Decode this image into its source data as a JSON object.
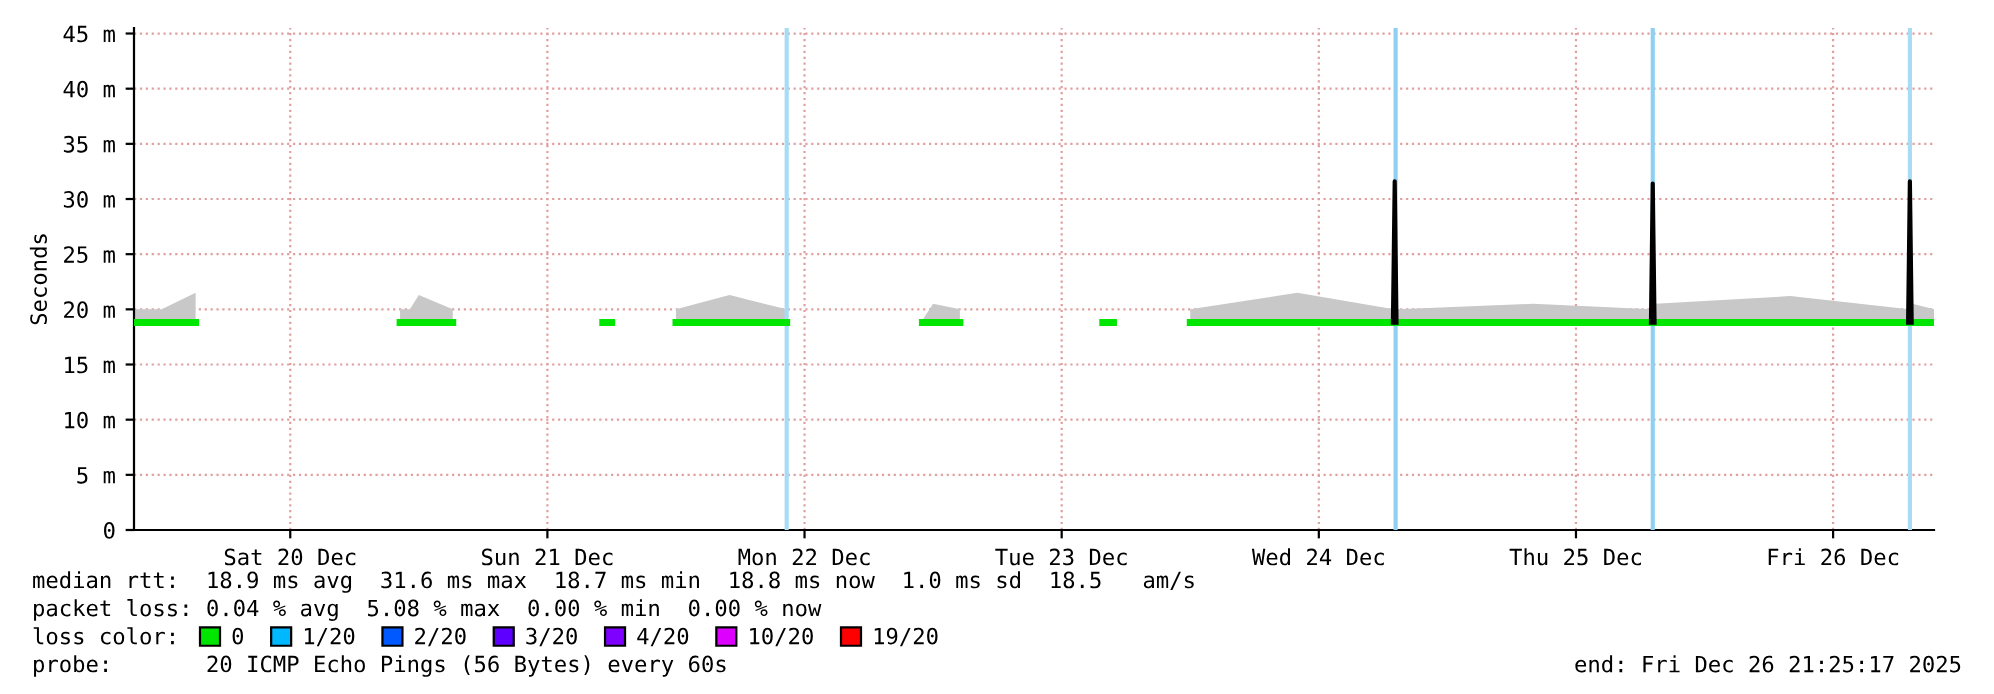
{
  "chart_data": {
    "type": "line",
    "ylabel": "Seconds",
    "legend_title": "loss color:",
    "legend": "bottom",
    "grid": true,
    "line_style": "solid",
    "marker": "none",
    "xlim": [
      "2025-12-19T21:25",
      "2025-12-26T21:25"
    ],
    "xticks": [
      {
        "value": "2025-12-20T12:00",
        "label": "Sat 20 Dec"
      },
      {
        "value": "2025-12-21T12:00",
        "label": "Sun 21 Dec"
      },
      {
        "value": "2025-12-22T12:00",
        "label": "Mon 22 Dec"
      },
      {
        "value": "2025-12-23T12:00",
        "label": "Tue 23 Dec"
      },
      {
        "value": "2025-12-24T12:00",
        "label": "Wed 24 Dec"
      },
      {
        "value": "2025-12-25T12:00",
        "label": "Thu 25 Dec"
      },
      {
        "value": "2025-12-26T12:00",
        "label": "Fri 26 Dec"
      }
    ],
    "ylim": [
      0,
      45.5
    ],
    "yticks": [
      0,
      {
        "value": 5,
        "label": "5 m"
      },
      {
        "value": 10,
        "label": "10 m"
      },
      {
        "value": 15,
        "label": "15 m"
      },
      {
        "value": 20,
        "label": "20 m"
      },
      {
        "value": 25,
        "label": "25 m"
      },
      {
        "value": 30,
        "label": "30 m"
      },
      {
        "value": 35,
        "label": "35 m"
      },
      {
        "value": 40,
        "label": "40 m"
      },
      {
        "value": 45,
        "label": "45 m"
      }
    ],
    "series": [
      {
        "name": "0",
        "color": "#00e600",
        "x": [
          "2025-12-19T21:25",
          "2025-12-20T00:00",
          "2025-12-20T03:10",
          "2025-12-20T12:00",
          "2025-12-20T22:15",
          "2025-12-20T23:10",
          "2025-12-21T00:00",
          "2025-12-21T03:10",
          "2025-12-21T12:00",
          "2025-12-21T17:10",
          "2025-12-21T18:00",
          "2025-12-21T21:00",
          "2025-12-22T00:00",
          "2025-12-22T05:00",
          "2025-12-22T10:20",
          "2025-12-22T18:00",
          "2025-12-22T23:00",
          "2025-12-23T00:00",
          "2025-12-23T02:30",
          "2025-12-23T10:00",
          "2025-12-23T15:50",
          "2025-12-23T16:50",
          "2025-12-23T20:00",
          "2025-12-24T00:00",
          "2025-12-24T10:00",
          "2025-12-24T19:00",
          "2025-12-24T19:20",
          "2025-12-25T08:00",
          "2025-12-25T19:05",
          "2025-12-25T19:25",
          "2025-12-26T08:00",
          "2025-12-26T19:05",
          "2025-12-26T19:25",
          "2025-12-26T21:25"
        ],
        "values": [
          18.8,
          18.8,
          18.8,
          null,
          18.8,
          18.8,
          18.8,
          18.8,
          null,
          18.8,
          18.8,
          null,
          18.8,
          18.8,
          18.8,
          null,
          18.8,
          18.8,
          18.8,
          null,
          18.8,
          18.8,
          null,
          18.8,
          18.8,
          18.8,
          18.8,
          18.8,
          18.8,
          18.8,
          18.8,
          18.8,
          18.8,
          18.8
        ],
        "lower": [
          18.6,
          18.6,
          18.6,
          null,
          18.6,
          18.6,
          18.6,
          18.6,
          null,
          null,
          null,
          null,
          18.6,
          18.6,
          18.6,
          null,
          18.6,
          18.6,
          18.6,
          null,
          null,
          null,
          null,
          18.6,
          18.6,
          18.6,
          18.6,
          18.6,
          18.6,
          18.6,
          18.6,
          18.6,
          18.6,
          18.6
        ],
        "upper": [
          20,
          20,
          21.5,
          null,
          20,
          20,
          21.3,
          20,
          null,
          null,
          null,
          null,
          20,
          21.3,
          20,
          null,
          19,
          20.5,
          20,
          null,
          null,
          null,
          null,
          20,
          21.5,
          20,
          20,
          20.5,
          20,
          20.5,
          21.2,
          20,
          20.5,
          20
        ]
      },
      {
        "color": "#000000",
        "x": [
          "2025-12-24T18:55",
          "2025-12-24T19:05",
          "2025-12-24T19:15",
          "2025-12-25T18:00",
          "2025-12-25T19:00",
          "2025-12-25T19:10",
          "2025-12-25T19:20",
          "2025-12-26T18:00",
          "2025-12-26T19:00",
          "2025-12-26T19:10",
          "2025-12-26T19:20"
        ],
        "values": [
          18.8,
          31.6,
          18.8,
          null,
          18.8,
          31.4,
          18.8,
          null,
          18.8,
          31.6,
          18.8
        ]
      },
      {
        "name": "1/20",
        "color": "#00b8ff"
      },
      {
        "name": "2/20",
        "color": "#0059ff"
      },
      {
        "name": "3/20",
        "color": "#5e00ff"
      },
      {
        "name": "4/20",
        "color": "#7e00ff"
      },
      {
        "name": "10/20",
        "color": "#dd00ff"
      },
      {
        "name": "19/20",
        "color": "#ff0000"
      }
    ],
    "ref_lines": [
      {
        "axis": "x",
        "value": "2025-12-22T10:20",
        "color": "#a8dcf5"
      },
      {
        "axis": "x",
        "value": "2025-12-24T19:10",
        "color": "#8fd0f2"
      },
      {
        "axis": "x",
        "value": "2025-12-25T19:10",
        "color": "#8fd0f2"
      },
      {
        "axis": "x",
        "value": "2025-12-26T19:10",
        "color": "#a8dcf5"
      }
    ],
    "annotations": [
      "median rtt:  18.9 ms avg  31.6 ms max  18.7 ms min  18.8 ms now  1.0 ms sd  18.5   am/s",
      "packet loss: 0.04 % avg  5.08 % max  0.00 % min  0.00 % now",
      "probe:       20 ICMP Echo Pings (56 Bytes) every 60s",
      "end: Fri Dec 26 21:25:17 2025"
    ]
  }
}
